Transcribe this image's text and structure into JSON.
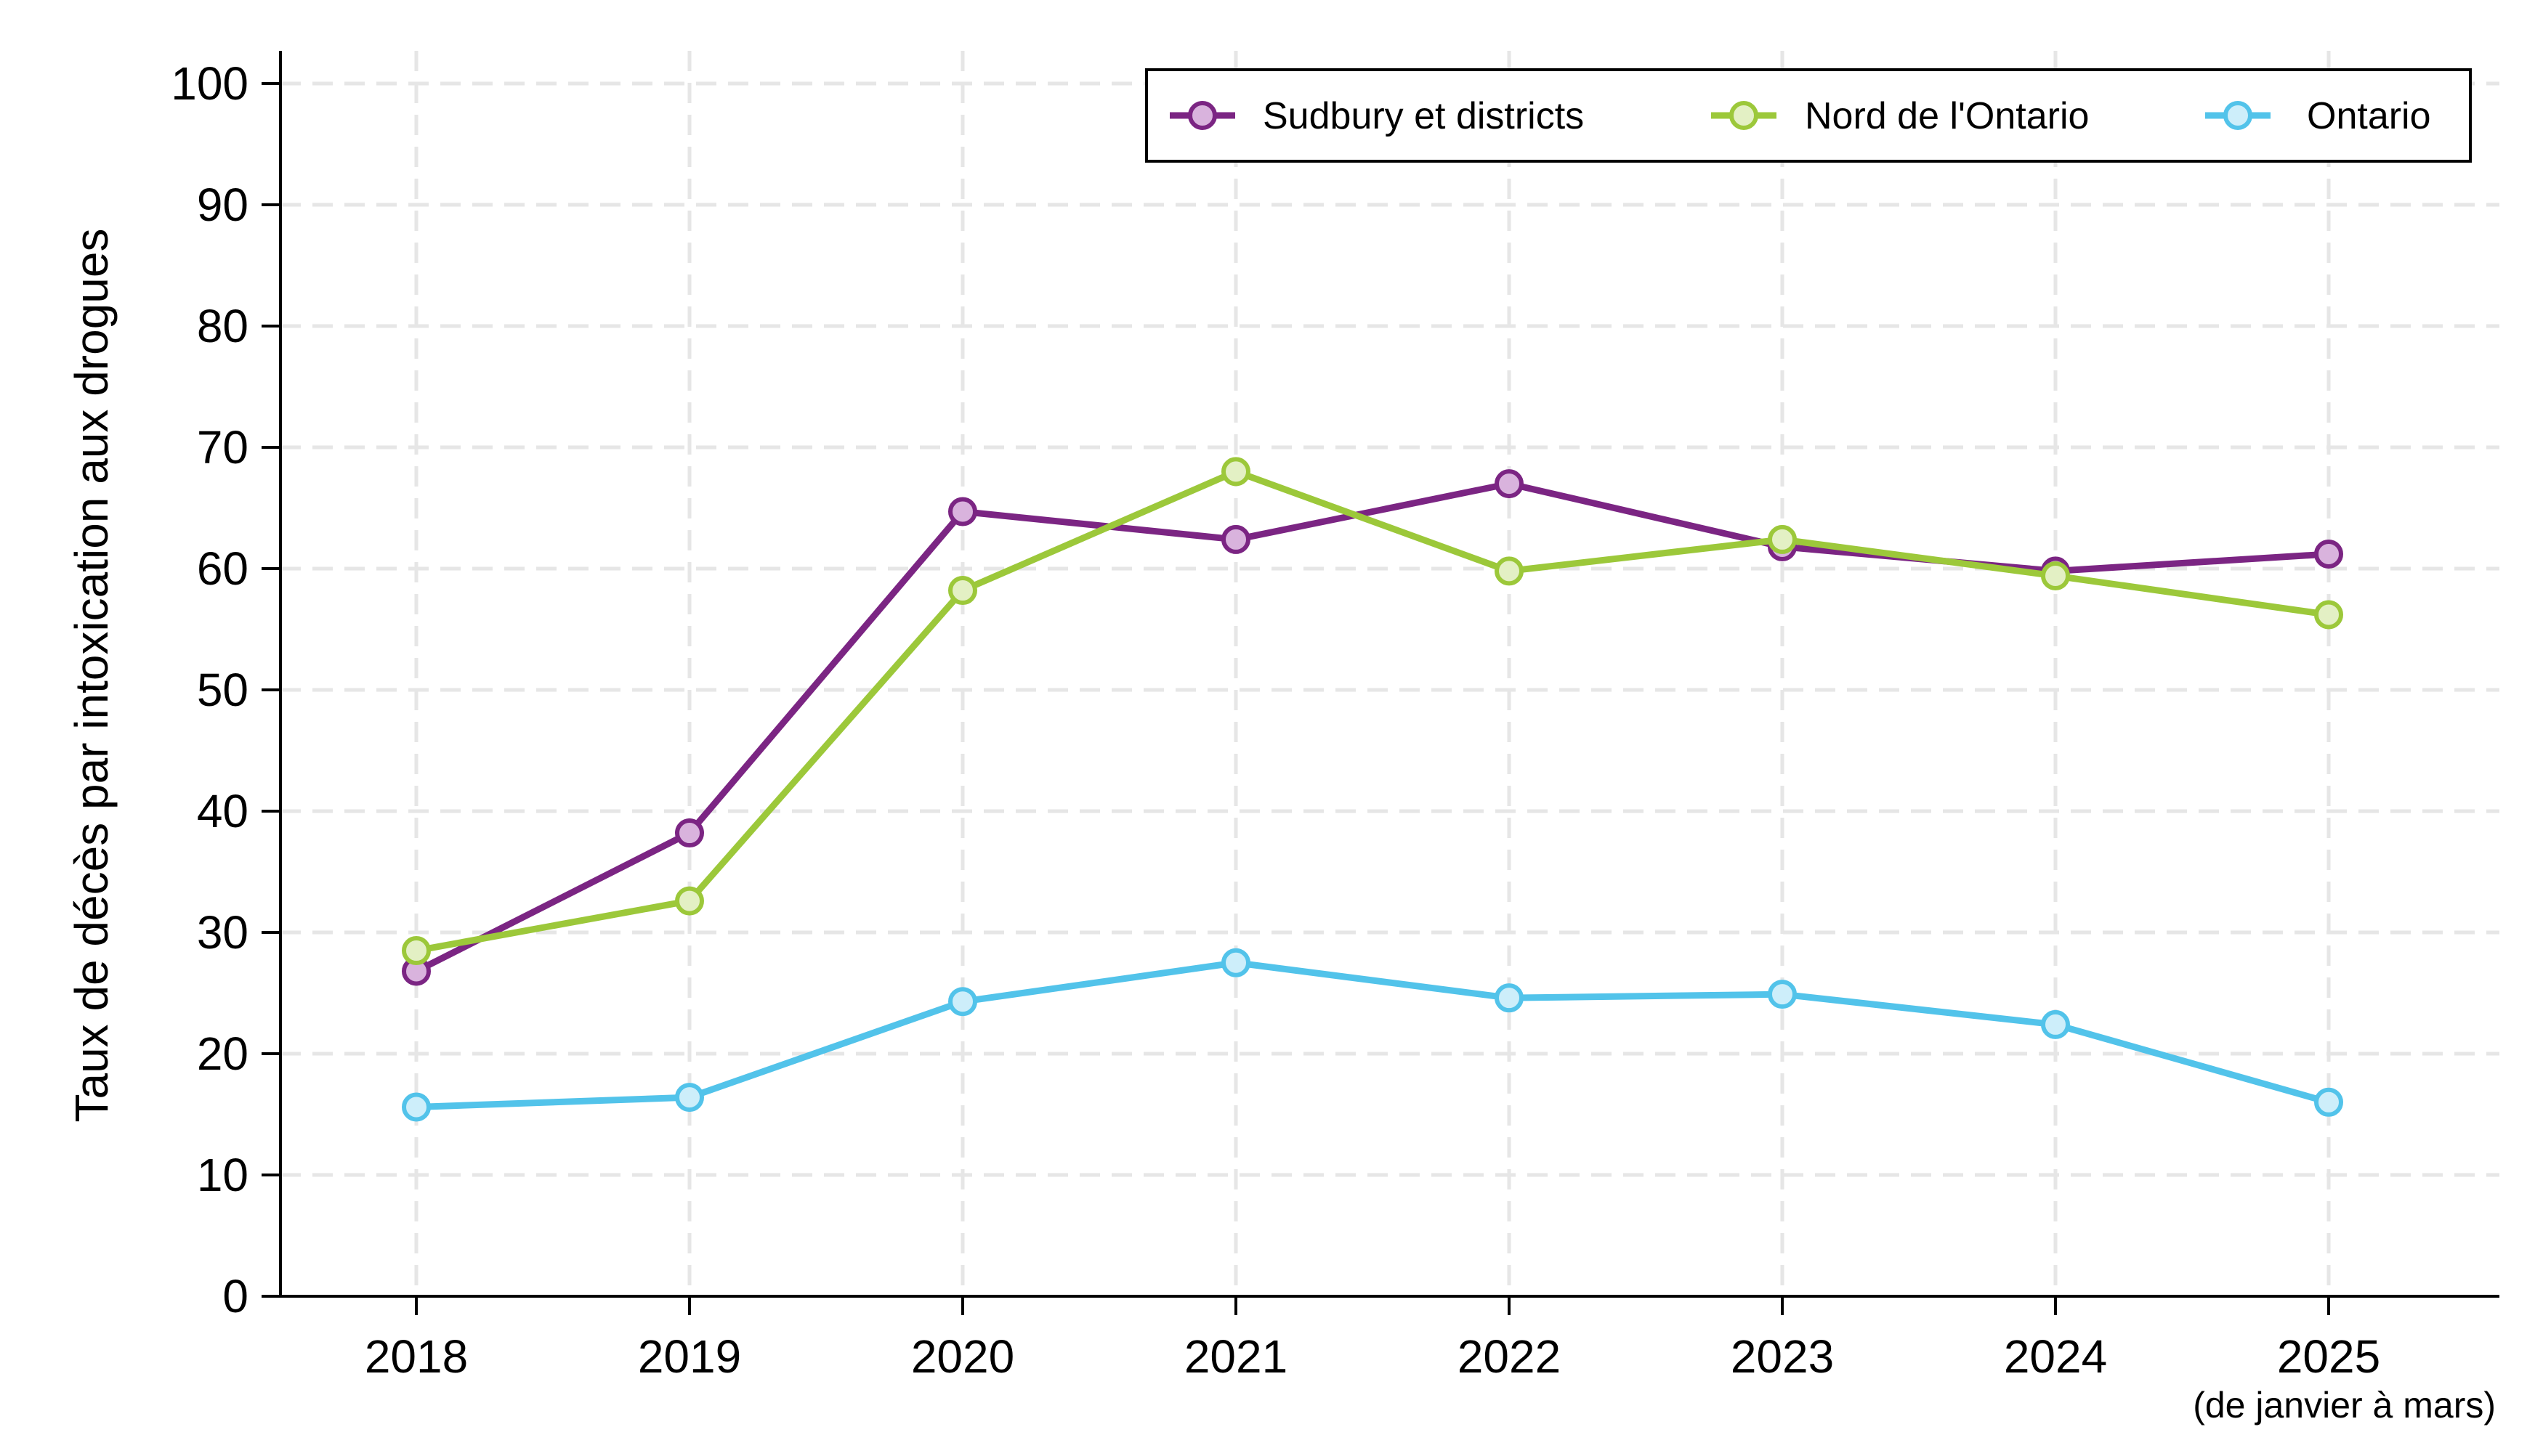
{
  "chart_data": {
    "type": "line",
    "title": "",
    "xlabel": "",
    "ylabel": "Taux de décès par intoxication aux drogues",
    "categories": [
      "2018",
      "2019",
      "2020",
      "2021",
      "2022",
      "2023",
      "2024",
      "2025"
    ],
    "x_note": "(de janvier à mars)",
    "ylim": [
      0,
      100
    ],
    "yticks": [
      0,
      10,
      20,
      30,
      40,
      50,
      60,
      70,
      80,
      90,
      100
    ],
    "grid": true,
    "legend_position": "top-right",
    "series": [
      {
        "name": "Sudbury et districts",
        "color": "#7b2583",
        "marker_fill": "#d9b3dd",
        "values": [
          26.8,
          38.2,
          64.7,
          62.4,
          67.0,
          61.8,
          59.8,
          61.2
        ]
      },
      {
        "name": "Nord de l'Ontario",
        "color": "#9cc83a",
        "marker_fill": "#e3f0c4",
        "values": [
          28.5,
          32.6,
          58.2,
          68.0,
          59.8,
          62.4,
          59.4,
          56.2
        ]
      },
      {
        "name": "Ontario",
        "color": "#52c3ea",
        "marker_fill": "#cdeefa",
        "values": [
          15.6,
          16.4,
          24.3,
          27.5,
          24.6,
          24.9,
          22.4,
          16.0
        ]
      }
    ]
  }
}
